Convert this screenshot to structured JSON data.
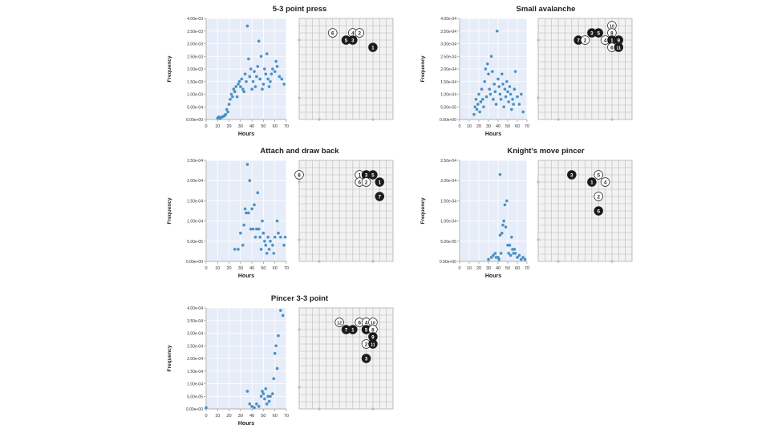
{
  "colors": {
    "plot_bg": "#e6edf8",
    "point": "#4a90c4",
    "grid": "#ffffff",
    "board_bg": "#f2f2f2",
    "board_line": "#b8b8b8",
    "stone_black": "#1a1a1a",
    "stone_white": "#ffffff"
  },
  "chart_data": [
    {
      "type": "scatter",
      "title": "5-3 point press",
      "xlabel": "Hours",
      "ylabel": "Frequency",
      "xlim": [
        0,
        70
      ],
      "ylim": [
        0,
        0.004
      ],
      "x_ticks": [
        "0",
        "10",
        "20",
        "30",
        "40",
        "50",
        "60",
        "70"
      ],
      "y_ticks": [
        "0.00e+00",
        "5.00e-04",
        "1.00e-03",
        "1.50e-03",
        "2.00e-03",
        "2.50e-03",
        "3.00e-03",
        "3.50e-03",
        "4.00e-03"
      ],
      "points": [
        [
          10,
          5e-05
        ],
        [
          11,
          0.0001
        ],
        [
          12,
          3e-05
        ],
        [
          13,
          8e-05
        ],
        [
          14,
          0.0001
        ],
        [
          15,
          0.00012
        ],
        [
          16,
          0.00015
        ],
        [
          17,
          0.0002
        ],
        [
          18,
          0.0004
        ],
        [
          19,
          0.0003
        ],
        [
          20,
          0.0006
        ],
        [
          21,
          0.0008
        ],
        [
          22,
          0.001
        ],
        [
          23,
          0.0009
        ],
        [
          24,
          0.0012
        ],
        [
          25,
          0.0011
        ],
        [
          26,
          0.0013
        ],
        [
          27,
          0.0009
        ],
        [
          28,
          0.0014
        ],
        [
          29,
          0.0015
        ],
        [
          30,
          0.0013
        ],
        [
          31,
          0.0016
        ],
        [
          32,
          0.0012
        ],
        [
          33,
          0.0011
        ],
        [
          34,
          0.0018
        ],
        [
          35,
          0.0015
        ],
        [
          36,
          0.0037
        ],
        [
          37,
          0.0024
        ],
        [
          38,
          0.0017
        ],
        [
          39,
          0.002
        ],
        [
          40,
          0.0012
        ],
        [
          41,
          0.0015
        ],
        [
          42,
          0.0019
        ],
        [
          43,
          0.0013
        ],
        [
          44,
          0.0017
        ],
        [
          45,
          0.0021
        ],
        [
          46,
          0.0031
        ],
        [
          47,
          0.0016
        ],
        [
          48,
          0.0025
        ],
        [
          49,
          0.0012
        ],
        [
          50,
          0.0014
        ],
        [
          51,
          0.002
        ],
        [
          52,
          0.0018
        ],
        [
          53,
          0.0026
        ],
        [
          54,
          0.0016
        ],
        [
          55,
          0.0013
        ],
        [
          56,
          0.0015
        ],
        [
          57,
          0.0018
        ],
        [
          58,
          0.002
        ],
        [
          60,
          0.0019
        ],
        [
          61,
          0.0023
        ],
        [
          62,
          0.0021
        ],
        [
          64,
          0.0017
        ],
        [
          66,
          0.0016
        ],
        [
          68,
          0.0014
        ]
      ],
      "board": {
        "stones": [
          {
            "col": 5,
            "row": 2,
            "color": "white",
            "label": "6"
          },
          {
            "col": 8,
            "row": 2,
            "color": "white",
            "label": "4"
          },
          {
            "col": 9,
            "row": 2,
            "color": "white",
            "label": "2"
          },
          {
            "col": 7,
            "row": 3,
            "color": "black",
            "label": "5"
          },
          {
            "col": 8,
            "row": 3,
            "color": "black",
            "label": "3"
          },
          {
            "col": 11,
            "row": 4,
            "color": "black",
            "label": "1"
          }
        ]
      }
    },
    {
      "type": "scatter",
      "title": "Small avalanche",
      "xlabel": "Hours",
      "ylabel": "Frequency",
      "xlim": [
        0,
        70
      ],
      "ylim": [
        0,
        0.0004
      ],
      "x_ticks": [
        "0",
        "10",
        "20",
        "30",
        "40",
        "50",
        "60",
        "70"
      ],
      "y_ticks": [
        "0.00e+00",
        "5.00e-05",
        "1.00e-04",
        "1.50e-04",
        "2.00e-04",
        "2.50e-04",
        "3.00e-04",
        "3.50e-04",
        "4.00e-04"
      ],
      "points": [
        [
          15,
          2e-05
        ],
        [
          16,
          5e-05
        ],
        [
          17,
          8e-05
        ],
        [
          18,
          4e-05
        ],
        [
          19,
          6e-05
        ],
        [
          20,
          0.0001
        ],
        [
          21,
          3e-05
        ],
        [
          22,
          7e-05
        ],
        [
          23,
          0.00012
        ],
        [
          24,
          8e-05
        ],
        [
          25,
          5e-05
        ],
        [
          26,
          0.00015
        ],
        [
          27,
          0.0002
        ],
        [
          28,
          9e-05
        ],
        [
          29,
          0.00022
        ],
        [
          30,
          0.00018
        ],
        [
          31,
          0.00012
        ],
        [
          32,
          0.0001
        ],
        [
          33,
          0.00025
        ],
        [
          34,
          0.00019
        ],
        [
          35,
          8e-05
        ],
        [
          36,
          0.00014
        ],
        [
          37,
          0.00011
        ],
        [
          38,
          6e-05
        ],
        [
          39,
          0.00035
        ],
        [
          40,
          0.00016
        ],
        [
          41,
          0.00013
        ],
        [
          42,
          0.0001
        ],
        [
          43,
          8e-05
        ],
        [
          44,
          0.00018
        ],
        [
          45,
          0.00014
        ],
        [
          46,
          5e-05
        ],
        [
          47,
          0.00012
        ],
        [
          48,
          9e-05
        ],
        [
          49,
          0.00015
        ],
        [
          50,
          0.00011
        ],
        [
          51,
          7e-05
        ],
        [
          52,
          0.00013
        ],
        [
          53,
          0.0001
        ],
        [
          54,
          4e-05
        ],
        [
          55,
          8e-05
        ],
        [
          56,
          6e-05
        ],
        [
          57,
          0.00012
        ],
        [
          58,
          0.00019
        ],
        [
          60,
          9e-05
        ],
        [
          62,
          6e-05
        ],
        [
          64,
          0.0001
        ],
        [
          66,
          3e-05
        ]
      ],
      "board": {
        "stones": [
          {
            "col": 11,
            "row": 1,
            "color": "white",
            "label": "10"
          },
          {
            "col": 8,
            "row": 2,
            "color": "black",
            "label": "3"
          },
          {
            "col": 9,
            "row": 2,
            "color": "black",
            "label": "5"
          },
          {
            "col": 11,
            "row": 2,
            "color": "white",
            "label": "8"
          },
          {
            "col": 6,
            "row": 3,
            "color": "black",
            "label": "7"
          },
          {
            "col": 7,
            "row": 3,
            "color": "white",
            "label": "2"
          },
          {
            "col": 10,
            "row": 3,
            "color": "white",
            "label": "4"
          },
          {
            "col": 11,
            "row": 3,
            "color": "black",
            "label": "1"
          },
          {
            "col": 12,
            "row": 3,
            "color": "black",
            "label": "9"
          },
          {
            "col": 11,
            "row": 4,
            "color": "white",
            "label": "6"
          },
          {
            "col": 12,
            "row": 4,
            "color": "black",
            "label": "11"
          }
        ]
      }
    },
    {
      "type": "scatter",
      "title": "Attach and draw back",
      "xlabel": "Hours",
      "ylabel": "Frequency",
      "xlim": [
        0,
        70
      ],
      "ylim": [
        0,
        0.00025
      ],
      "x_ticks": [
        "0",
        "10",
        "20",
        "30",
        "40",
        "50",
        "60",
        "70"
      ],
      "y_ticks": [
        "0.00e+00",
        "5.00e-05",
        "1.00e-04",
        "1.50e-04",
        "2.00e-04",
        "2.50e-04"
      ],
      "points": [
        [
          25,
          3e-05
        ],
        [
          28,
          3e-05
        ],
        [
          30,
          7e-05
        ],
        [
          32,
          4e-05
        ],
        [
          33,
          9e-05
        ],
        [
          34,
          0.00013
        ],
        [
          35,
          0.00012
        ],
        [
          36,
          0.00024
        ],
        [
          37,
          0.00012
        ],
        [
          38,
          0.0002
        ],
        [
          39,
          8e-05
        ],
        [
          40,
          0.00013
        ],
        [
          41,
          8e-05
        ],
        [
          42,
          0.00014
        ],
        [
          43,
          6e-05
        ],
        [
          44,
          8e-05
        ],
        [
          45,
          0.00017
        ],
        [
          46,
          8e-05
        ],
        [
          47,
          6e-05
        ],
        [
          48,
          3e-05
        ],
        [
          49,
          0.0001
        ],
        [
          50,
          7e-05
        ],
        [
          51,
          5e-05
        ],
        [
          52,
          4e-05
        ],
        [
          53,
          2e-05
        ],
        [
          54,
          6e-05
        ],
        [
          55,
          3e-05
        ],
        [
          56,
          5e-05
        ],
        [
          58,
          4e-05
        ],
        [
          59,
          2e-05
        ],
        [
          60,
          6e-05
        ],
        [
          62,
          0.0001
        ],
        [
          63,
          7e-05
        ],
        [
          65,
          6e-05
        ],
        [
          68,
          4e-05
        ],
        [
          69,
          6e-05
        ]
      ],
      "board": {
        "stones": [
          {
            "col": 0,
            "row": 2,
            "color": "white",
            "label": "8"
          },
          {
            "col": 9,
            "row": 2,
            "color": "white",
            "label": "1"
          },
          {
            "col": 10,
            "row": 2,
            "color": "black",
            "label": "3"
          },
          {
            "col": 11,
            "row": 2,
            "color": "black",
            "label": "5"
          },
          {
            "col": 9,
            "row": 3,
            "color": "white",
            "label": "6"
          },
          {
            "col": 10,
            "row": 3,
            "color": "white",
            "label": "2"
          },
          {
            "col": 12,
            "row": 3,
            "color": "black",
            "label": "1"
          },
          {
            "col": 12,
            "row": 5,
            "color": "black",
            "label": "7"
          }
        ]
      }
    },
    {
      "type": "scatter",
      "title": "Knight's move pincer",
      "xlabel": "Hours",
      "ylabel": "Frequency",
      "xlim": [
        0,
        70
      ],
      "ylim": [
        0,
        0.00025
      ],
      "x_ticks": [
        "0",
        "10",
        "20",
        "30",
        "40",
        "50",
        "60",
        "70"
      ],
      "y_ticks": [
        "0.00e+00",
        "5.00e-05",
        "1.00e-04",
        "1.50e-04",
        "2.00e-04",
        "2.50e-04"
      ],
      "points": [
        [
          30,
          5e-06
        ],
        [
          33,
          1e-05
        ],
        [
          35,
          1.5e-05
        ],
        [
          37,
          2e-05
        ],
        [
          38,
          1e-05
        ],
        [
          40,
          1e-05
        ],
        [
          41,
          5e-06
        ],
        [
          42,
          6.5e-05
        ],
        [
          43,
          2e-05
        ],
        [
          44,
          7e-05
        ],
        [
          45,
          9e-05
        ],
        [
          46,
          0.0001
        ],
        [
          47,
          0.00014
        ],
        [
          48,
          8.5e-05
        ],
        [
          49,
          0.00015
        ],
        [
          50,
          4e-05
        ],
        [
          51,
          2e-05
        ],
        [
          52,
          4e-05
        ],
        [
          53,
          1.5e-05
        ],
        [
          54,
          6e-05
        ],
        [
          55,
          3e-05
        ],
        [
          56,
          2e-05
        ],
        [
          57,
          3e-05
        ],
        [
          58,
          2e-05
        ],
        [
          42,
          0.000215
        ],
        [
          60,
          1e-05
        ],
        [
          62,
          1.5e-05
        ],
        [
          64,
          5e-06
        ],
        [
          66,
          1e-05
        ],
        [
          68,
          5e-06
        ]
      ],
      "board": {
        "stones": [
          {
            "col": 5,
            "row": 2,
            "color": "black",
            "label": "3"
          },
          {
            "col": 9,
            "row": 2,
            "color": "white",
            "label": "5"
          },
          {
            "col": 8,
            "row": 3,
            "color": "black",
            "label": "1"
          },
          {
            "col": 10,
            "row": 3,
            "color": "white",
            "label": "4"
          },
          {
            "col": 9,
            "row": 5,
            "color": "white",
            "label": "2"
          },
          {
            "col": 9,
            "row": 7,
            "color": "black",
            "label": "6"
          }
        ]
      }
    },
    {
      "type": "scatter",
      "title": "Pincer 3-3 point",
      "xlabel": "Hours",
      "ylabel": "Frequency",
      "xlim": [
        0,
        70
      ],
      "ylim": [
        0,
        0.0004
      ],
      "x_ticks": [
        "0",
        "10",
        "20",
        "30",
        "40",
        "50",
        "60",
        "70"
      ],
      "y_ticks": [
        "0.00e+00",
        "5.00e-05",
        "1.00e-04",
        "1.50e-04",
        "2.00e-04",
        "2.50e-04",
        "3.00e-04",
        "3.50e-04",
        "4.00e-04"
      ],
      "points": [
        [
          0,
          5e-06
        ],
        [
          36,
          7e-05
        ],
        [
          38,
          2e-05
        ],
        [
          40,
          1e-05
        ],
        [
          42,
          5e-06
        ],
        [
          44,
          2e-05
        ],
        [
          46,
          1e-05
        ],
        [
          48,
          5e-05
        ],
        [
          49,
          7e-05
        ],
        [
          50,
          6e-05
        ],
        [
          51,
          4e-05
        ],
        [
          52,
          8e-05
        ],
        [
          53,
          2e-05
        ],
        [
          54,
          5e-05
        ],
        [
          55,
          3e-05
        ],
        [
          56,
          5e-05
        ],
        [
          58,
          6e-05
        ],
        [
          59,
          0.00012
        ],
        [
          60,
          0.00022
        ],
        [
          61,
          0.00025
        ],
        [
          62,
          0.00016
        ],
        [
          63,
          0.00029
        ],
        [
          65,
          0.00039
        ],
        [
          67,
          0.00037
        ]
      ],
      "board": {
        "stones": [
          {
            "col": 6,
            "row": 2,
            "color": "white",
            "label": "12"
          },
          {
            "col": 9,
            "row": 2,
            "color": "white",
            "label": "6"
          },
          {
            "col": 10,
            "row": 2,
            "color": "white",
            "label": "4"
          },
          {
            "col": 11,
            "row": 2,
            "color": "white",
            "label": "10"
          },
          {
            "col": 7,
            "row": 3,
            "color": "black",
            "label": "7"
          },
          {
            "col": 8,
            "row": 3,
            "color": "black",
            "label": "1"
          },
          {
            "col": 10,
            "row": 3,
            "color": "black",
            "label": "5"
          },
          {
            "col": 11,
            "row": 3,
            "color": "white",
            "label": "8"
          },
          {
            "col": 11,
            "row": 4,
            "color": "black",
            "label": "9"
          },
          {
            "col": 10,
            "row": 5,
            "color": "white",
            "label": "2"
          },
          {
            "col": 11,
            "row": 5,
            "color": "black",
            "label": "11"
          },
          {
            "col": 10,
            "row": 7,
            "color": "black",
            "label": "3"
          }
        ]
      }
    }
  ]
}
